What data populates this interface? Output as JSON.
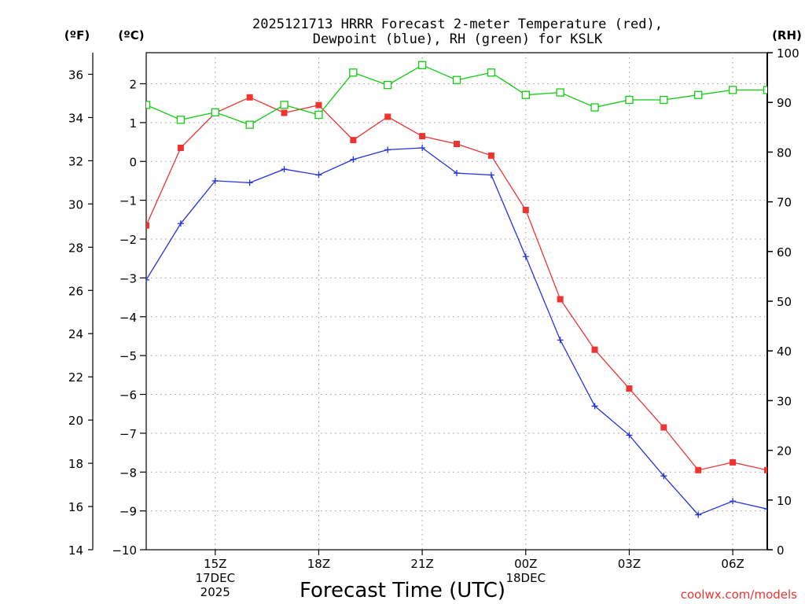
{
  "chart_data": {
    "type": "line",
    "title_lines": [
      "2025121713 HRRR Forecast 2-meter Temperature (red),",
      "Dewpoint (blue), RH (green) for KSLK"
    ],
    "xlabel": "Forecast Time (UTC)",
    "x_ticks": [
      {
        "hour": 2,
        "labels": [
          "15Z",
          "17DEC",
          "2025"
        ]
      },
      {
        "hour": 5,
        "labels": [
          "18Z"
        ]
      },
      {
        "hour": 8,
        "labels": [
          "21Z"
        ]
      },
      {
        "hour": 11,
        "labels": [
          "00Z",
          "18DEC"
        ]
      },
      {
        "hour": 14,
        "labels": [
          "03Z"
        ]
      },
      {
        "hour": 17,
        "labels": [
          "06Z"
        ]
      }
    ],
    "x_range": [
      0,
      18
    ],
    "axes": {
      "fahrenheit": {
        "unit_label": "(ºF)",
        "ylim": [
          14,
          37
        ],
        "ticks": [
          "14",
          "16",
          "18",
          "20",
          "22",
          "24",
          "26",
          "28",
          "30",
          "32",
          "34",
          "36"
        ]
      },
      "celsius": {
        "unit_label": "(ºC)",
        "ylim": [
          -10,
          2.8
        ],
        "ticks": [
          "−10",
          "−9",
          "−8",
          "−7",
          "−6",
          "−5",
          "−4",
          "−3",
          "−2",
          "−1",
          "0",
          "1",
          "2"
        ]
      },
      "rh": {
        "unit_label": "(RH)",
        "ylim": [
          0,
          100
        ],
        "ticks": [
          "0",
          "10",
          "20",
          "30",
          "40",
          "50",
          "60",
          "70",
          "80",
          "90",
          "100"
        ]
      }
    },
    "x": [
      0,
      1,
      2,
      3,
      4,
      5,
      6,
      7,
      8,
      9,
      10,
      11,
      12,
      13,
      14,
      15,
      16,
      17,
      18
    ],
    "series": [
      {
        "name": "2-meter Temperature",
        "axis": "celsius",
        "color": "#ee3333",
        "marker": "filled-square",
        "values": [
          -1.65,
          0.35,
          1.25,
          1.65,
          1.25,
          1.45,
          0.55,
          1.15,
          0.65,
          0.45,
          0.15,
          -1.25,
          -3.55,
          -4.85,
          -5.85,
          -6.85,
          -7.95,
          -7.75,
          -7.95
        ]
      },
      {
        "name": "Dewpoint",
        "axis": "celsius",
        "color": "#2233dd",
        "marker": "plus",
        "values": [
          -3.05,
          -1.6,
          -0.5,
          -0.55,
          -0.2,
          -0.35,
          0.05,
          0.3,
          0.35,
          -0.3,
          -0.35,
          -2.45,
          -4.6,
          -6.3,
          -7.05,
          -8.1,
          -9.1,
          -8.75,
          -8.95
        ]
      },
      {
        "name": "RH",
        "axis": "rh",
        "color": "#11cc11",
        "marker": "open-square",
        "values": [
          89.5,
          86.5,
          88,
          85.5,
          89.5,
          87.5,
          96,
          93.5,
          97.5,
          94.5,
          96,
          91.5,
          92,
          89,
          90.5,
          90.5,
          91.5,
          92.5,
          92.5
        ]
      }
    ],
    "grid": true,
    "credit": "coolwx.com/models"
  }
}
